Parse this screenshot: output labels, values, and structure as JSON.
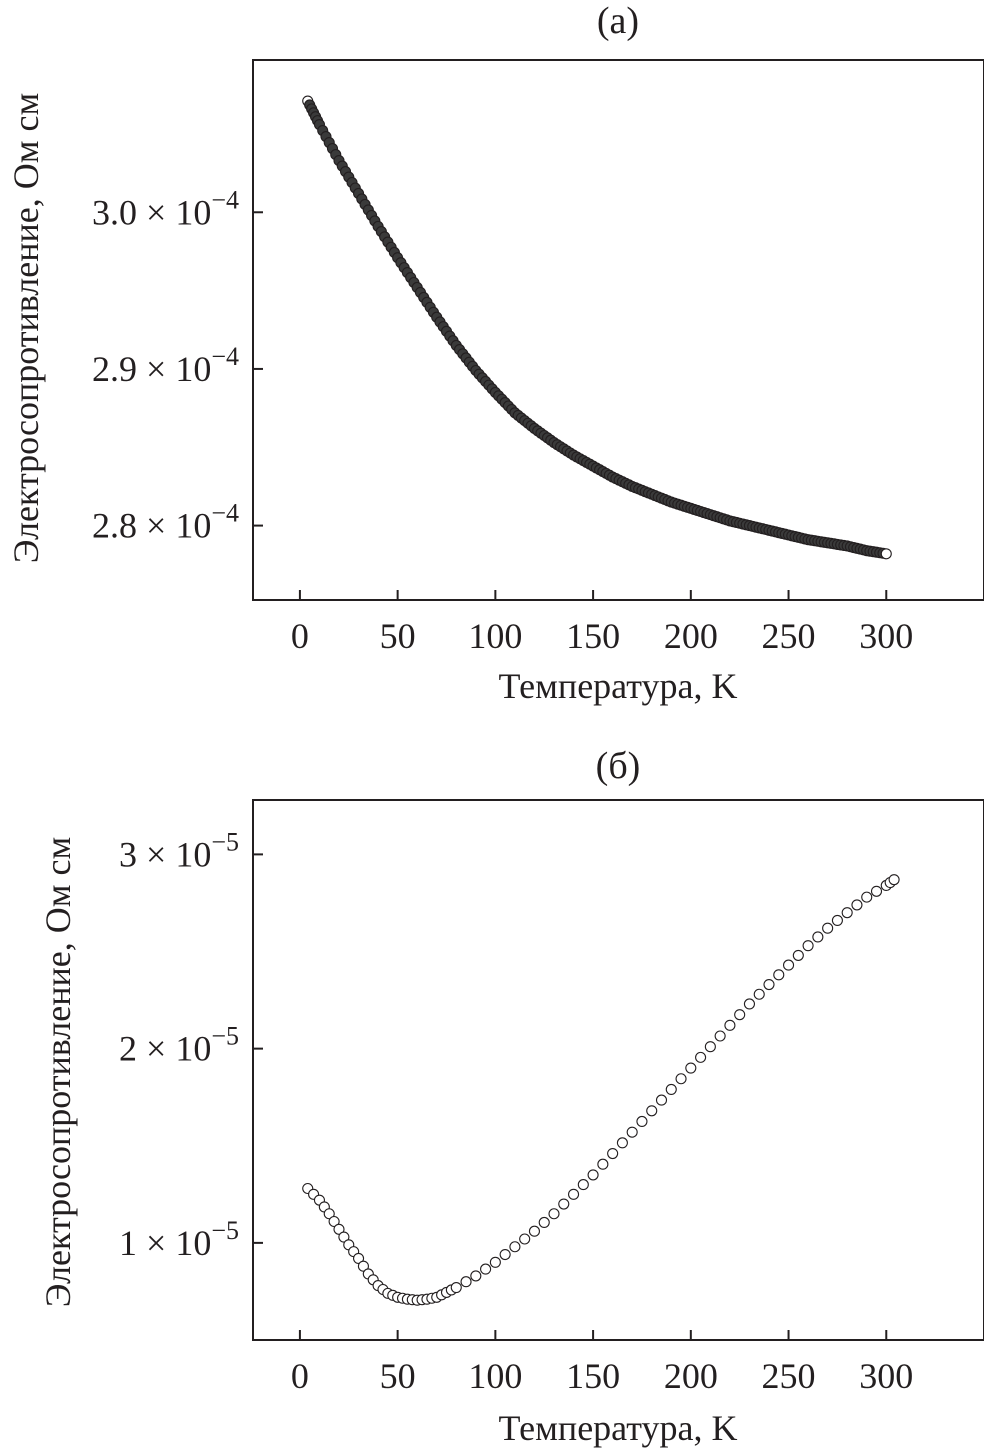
{
  "chart_data": [
    {
      "type": "scatter",
      "panel_label": "(а)",
      "xlabel": "Температура, K",
      "ylabel": "Электросопротивление, Ом см",
      "xlim": [
        -24,
        350
      ],
      "ylim": [
        0.00027525,
        0.00030972
      ],
      "x_ticks": [
        0,
        50,
        100,
        150,
        200,
        250,
        300
      ],
      "x_tick_labels": [
        "0",
        "50",
        "100",
        "150",
        "200",
        "250",
        "300"
      ],
      "y_ticks": [
        0.00028,
        0.00029,
        0.0003
      ],
      "y_tick_labels": [
        {
          "mantissa": "2.8",
          "times": "×",
          "base": "10",
          "exponent": "−4"
        },
        {
          "mantissa": "2.9",
          "times": "×",
          "base": "10",
          "exponent": "−4"
        },
        {
          "mantissa": "3.0",
          "times": "×",
          "base": "10",
          "exponent": "−4"
        }
      ],
      "grid": false,
      "series": [
        {
          "name": "resistivity",
          "x": [
            4,
            10,
            20,
            30,
            40,
            50,
            60,
            70,
            80,
            90,
            100,
            110,
            120,
            130,
            140,
            150,
            160,
            170,
            180,
            190,
            200,
            210,
            220,
            230,
            240,
            250,
            260,
            270,
            280,
            290,
            300
          ],
          "y": [
            0.0003071,
            0.0003056,
            0.0003033,
            0.0003012,
            0.0002991,
            0.0002971,
            0.0002952,
            0.0002933,
            0.0002915,
            0.0002899,
            0.0002885,
            0.0002872,
            0.0002862,
            0.0002853,
            0.0002845,
            0.0002838,
            0.0002831,
            0.0002825,
            0.000282,
            0.0002815,
            0.0002811,
            0.0002807,
            0.0002803,
            0.00028,
            0.0002797,
            0.0002794,
            0.0002791,
            0.0002789,
            0.0002787,
            0.0002784,
            0.0002782
          ]
        }
      ]
    },
    {
      "type": "scatter",
      "panel_label": "(б)",
      "xlabel": "Температура, K",
      "ylabel": "Электросопротивление, Ом см",
      "xlim": [
        -24,
        350
      ],
      "ylim": [
        5e-06,
        3.28e-05
      ],
      "x_ticks": [
        0,
        50,
        100,
        150,
        200,
        250,
        300
      ],
      "x_tick_labels": [
        "0",
        "50",
        "100",
        "150",
        "200",
        "250",
        "300"
      ],
      "y_ticks": [
        1e-05,
        2e-05,
        3e-05
      ],
      "y_tick_labels": [
        {
          "mantissa": "1",
          "times": "×",
          "base": "10",
          "exponent": "−5"
        },
        {
          "mantissa": "2",
          "times": "×",
          "base": "10",
          "exponent": "−5"
        },
        {
          "mantissa": "3",
          "times": "×",
          "base": "10",
          "exponent": "−5"
        }
      ],
      "grid": false,
      "series": [
        {
          "name": "resistivity",
          "x": [
            4,
            10,
            15,
            20,
            25,
            30,
            35,
            40,
            45,
            50,
            55,
            60,
            65,
            70,
            75,
            80,
            90,
            100,
            110,
            120,
            130,
            140,
            150,
            160,
            170,
            180,
            190,
            200,
            210,
            220,
            230,
            240,
            250,
            260,
            270,
            280,
            290,
            300,
            304
          ],
          "y": [
            1.28e-05,
            1.22e-05,
            1.15e-05,
            1.07e-05,
            9.9e-06,
            9.2e-06,
            8.4e-06,
            7.8e-06,
            7.4e-06,
            7.2e-06,
            7.1e-06,
            7.05e-06,
            7.1e-06,
            7.2e-06,
            7.45e-06,
            7.7e-06,
            8.3e-06,
            9e-06,
            9.8e-06,
            1.06e-05,
            1.15e-05,
            1.25e-05,
            1.35e-05,
            1.46e-05,
            1.57e-05,
            1.68e-05,
            1.79e-05,
            1.9e-05,
            2.01e-05,
            2.12e-05,
            2.23e-05,
            2.33e-05,
            2.43e-05,
            2.53e-05,
            2.62e-05,
            2.7e-05,
            2.78e-05,
            2.84e-05,
            2.87e-05
          ]
        }
      ]
    }
  ]
}
